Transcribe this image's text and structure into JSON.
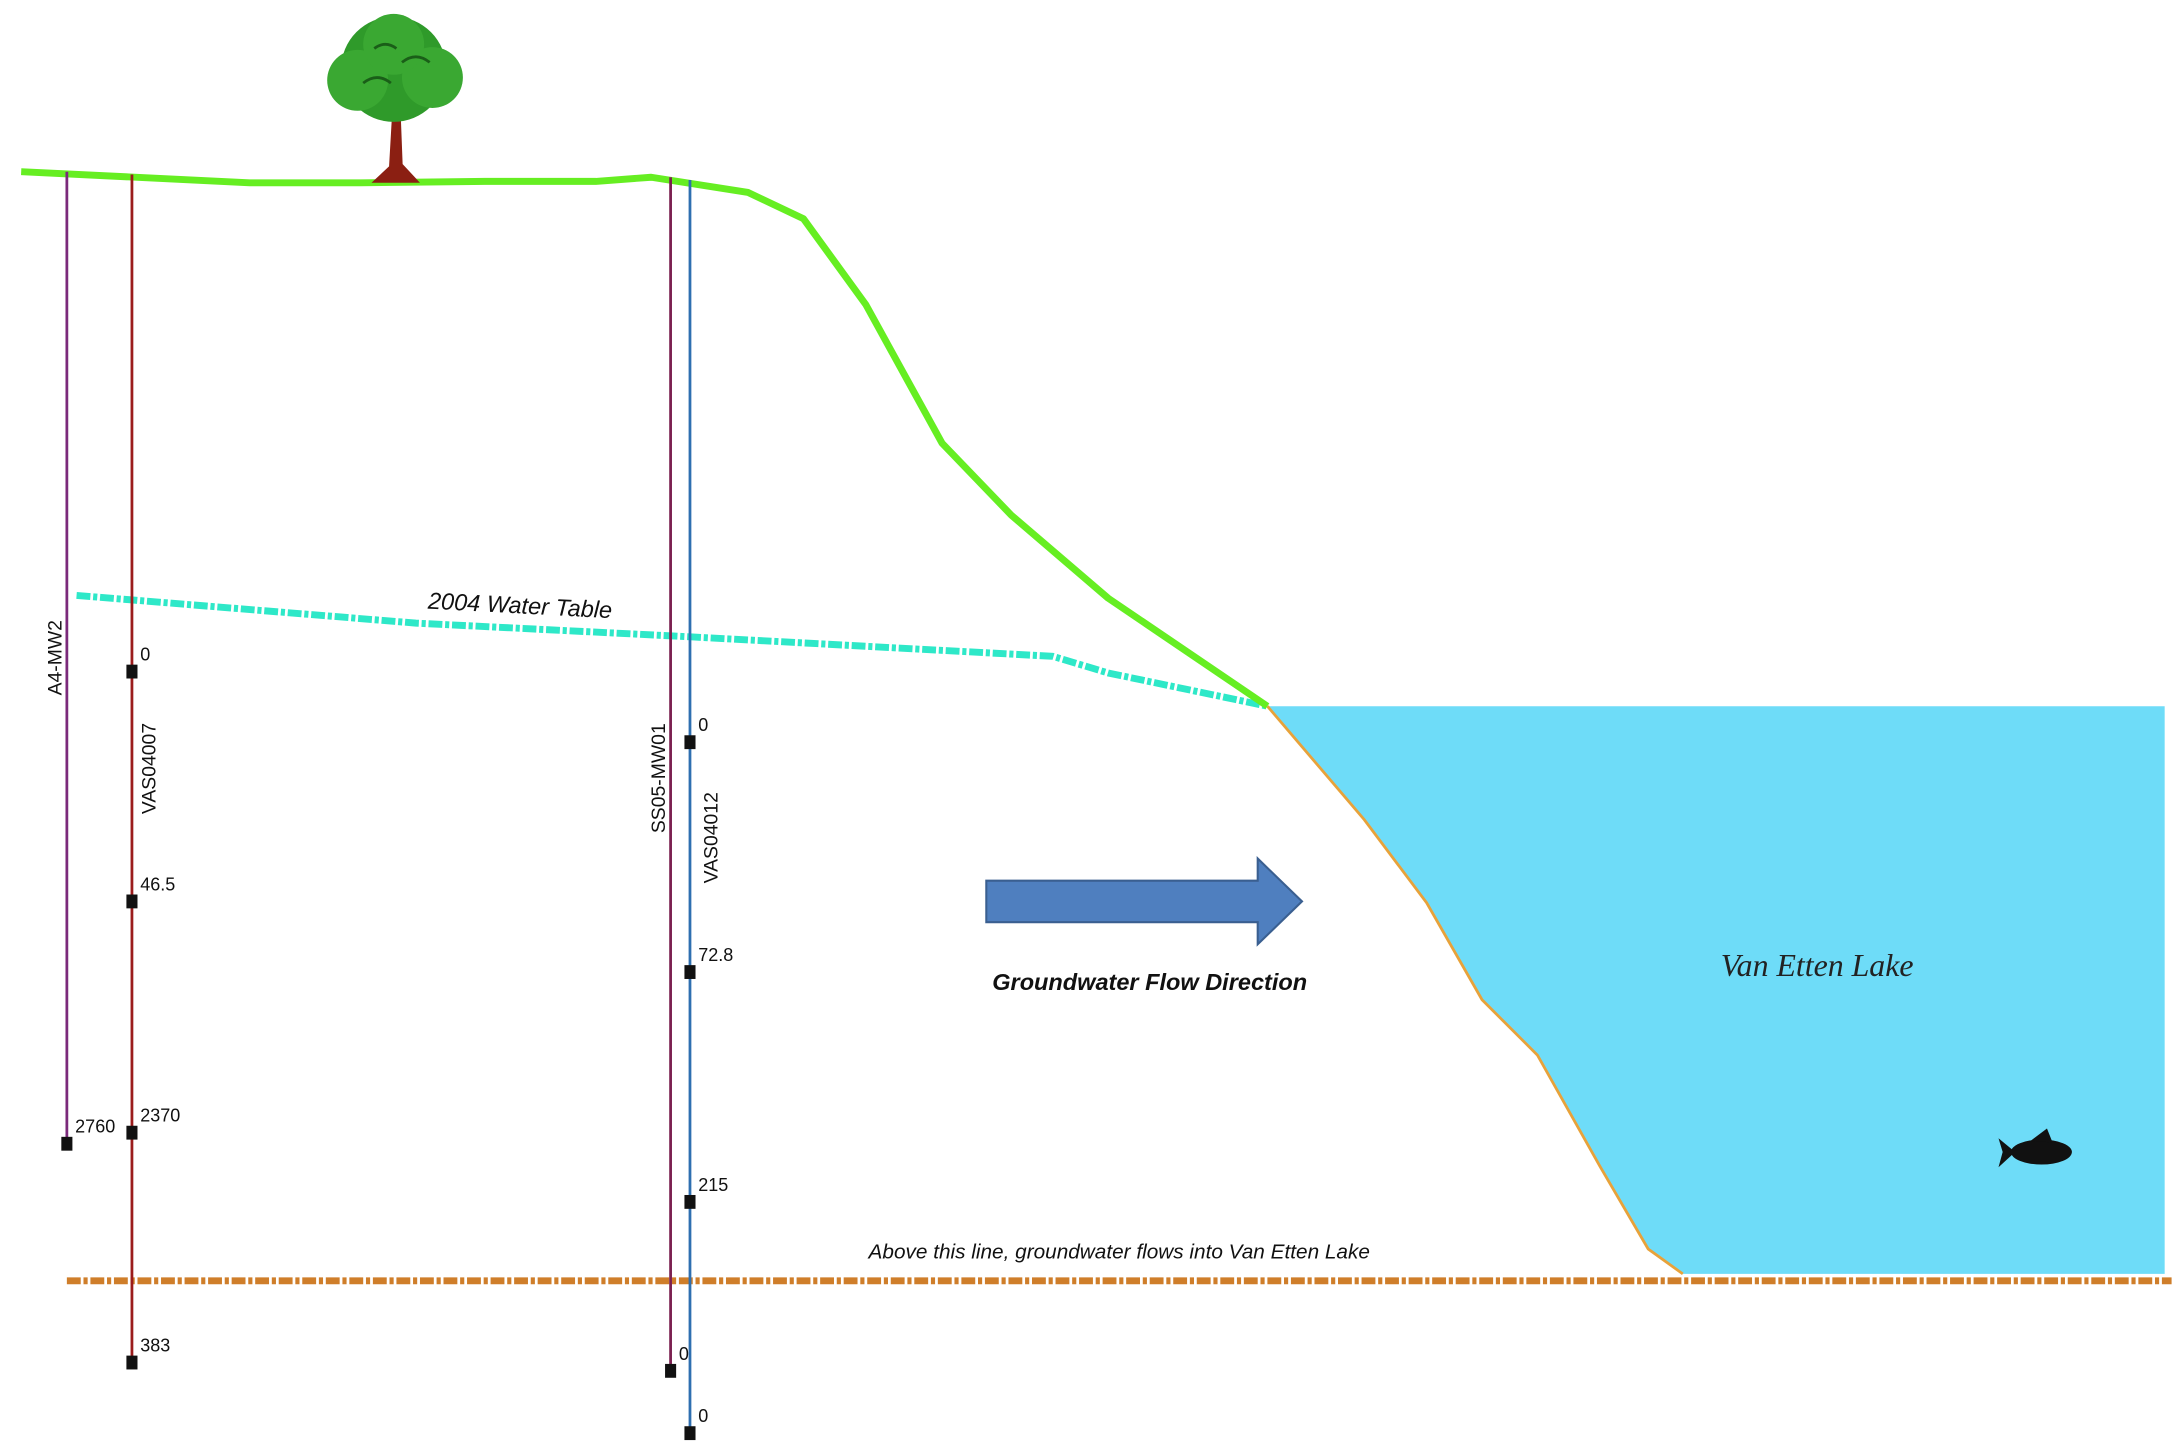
{
  "water_table_label": "2004 Water Table",
  "flow_label": "Groundwater Flow Direction",
  "lake_label": "Van Etten Lake",
  "boundary_label": "Above this line, groundwater flows into Van Etten Lake",
  "wells": [
    {
      "name": "A4-MW2",
      "samples": [
        "2760"
      ]
    },
    {
      "name": "VAS04007",
      "samples": [
        "0",
        "46.5",
        "2370",
        "383"
      ]
    },
    {
      "name": "SS05-MW01",
      "samples": [
        "0"
      ]
    },
    {
      "name": "VAS04012",
      "samples": [
        "0",
        "72.8",
        "215",
        "0"
      ]
    }
  ]
}
